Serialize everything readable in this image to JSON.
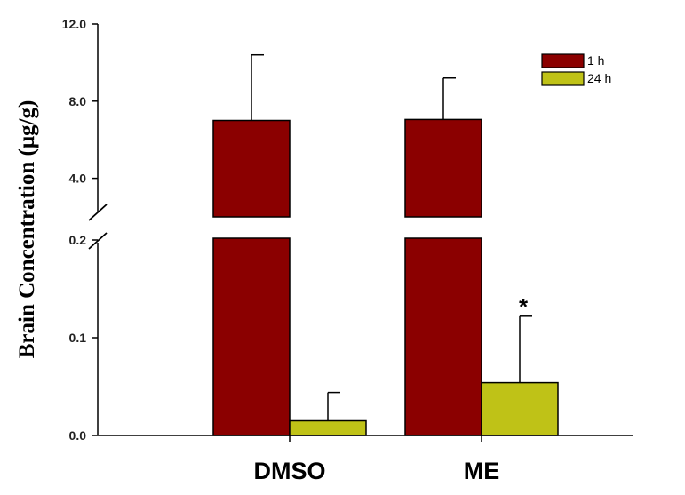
{
  "chart_data": {
    "type": "bar",
    "title": "",
    "xlabel": "",
    "ylabel": "Brain Concentration (μg/g)",
    "categories": [
      "DMSO",
      "ME"
    ],
    "series": [
      {
        "name": "1 h",
        "color": "#8b0000",
        "values": [
          7.0,
          7.05
        ],
        "errors": [
          3.4,
          2.15
        ]
      },
      {
        "name": "24 h",
        "color": "#bfc217",
        "values": [
          0.015,
          0.054
        ],
        "errors": [
          0.029,
          0.068
        ]
      }
    ],
    "y_axis_broken": true,
    "y_break_between": [
      0.2,
      2.0
    ],
    "ylim_lower": [
      0,
      0.2
    ],
    "ylim_upper": [
      2.0,
      12.0
    ],
    "yticks_lower": [
      "0.0",
      "0.1",
      "0.2"
    ],
    "yticks_upper": [
      "4.0",
      "8.0",
      "12.0"
    ],
    "annotations": [
      {
        "text": "*",
        "category": "ME",
        "series": "24 h"
      }
    ],
    "legend_position": "top-right",
    "grid": false
  }
}
